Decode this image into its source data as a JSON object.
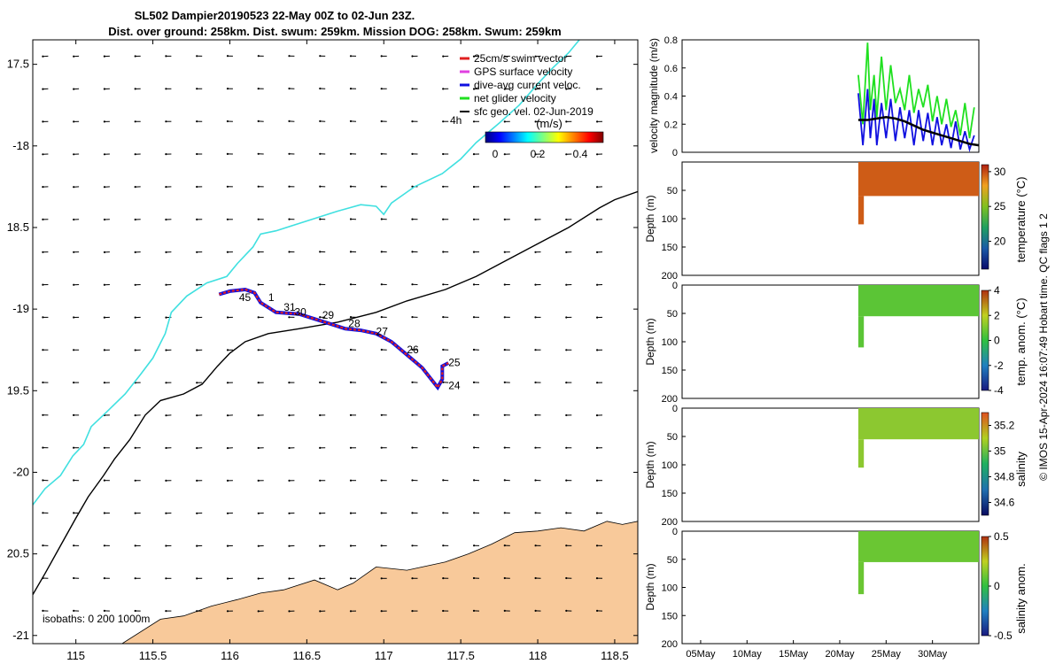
{
  "title": {
    "line1": "SL502 Dampier20190523 22-May 00Z to 02-Jun 23Z.",
    "line2": "Dist. over ground: 258km. Dist. swum: 259km. Mission DOG: 258km. Swum: 259km"
  },
  "side_note": "© IMOS 15-Apr-2024 16:07:49 Hobart time. QC flags 1  2",
  "colors": {
    "land": "#f8c99a",
    "coast_line": "#40e0e0",
    "isobath": "#000000",
    "swim": "#e02020",
    "gps": "#e040e0",
    "dive_avg": "#1010e0",
    "net": "#20e020",
    "sfc_geo": "#000000"
  },
  "chart_data": [
    {
      "id": "map",
      "type": "scatter",
      "xlabel": "",
      "ylabel": "",
      "xlim": [
        114.72,
        118.65
      ],
      "ylim": [
        -21.05,
        -17.35
      ],
      "xticks": [
        115,
        115.5,
        116,
        116.5,
        117,
        117.5,
        118,
        118.5
      ],
      "xticklabels": [
        "115",
        "115.5",
        "116",
        "116.5",
        "117",
        "117.5",
        "118",
        "118.5"
      ],
      "yticks": [
        -17.5,
        -18,
        -18.5,
        -19,
        -19.5,
        -20,
        -20.5,
        -21
      ],
      "yticklabels": [
        "17.5",
        "-18",
        "18.5",
        "-19",
        "19.5",
        "-20",
        "20.5",
        "-21"
      ],
      "legend": [
        {
          "label": "25cm/s swim vector",
          "key": "swim"
        },
        {
          "label": "GPS surface velocity",
          "key": "gps"
        },
        {
          "label": "dive-avg current veloc.",
          "key": "dive_avg"
        },
        {
          "label": "net glider velocity",
          "key": "net"
        },
        {
          "label": "sfc geo. vel. 02-Jun-2019",
          "key": "sfc_geo"
        }
      ],
      "legend_position": "top-right",
      "colorbar": {
        "label": "(m/s)",
        "ticks": [
          "0",
          "0.2",
          "0.4"
        ],
        "range": [
          0,
          0.5
        ],
        "corner_label": "4h"
      },
      "isobath_caption": "isobaths: 0   200  1000m",
      "track": [
        [
          115.93,
          -18.91
        ],
        [
          116.0,
          -18.89
        ],
        [
          116.1,
          -18.88
        ],
        [
          116.16,
          -18.9
        ],
        [
          116.2,
          -18.96
        ],
        [
          116.3,
          -19.02
        ],
        [
          116.45,
          -19.03
        ],
        [
          116.55,
          -19.06
        ],
        [
          116.65,
          -19.09
        ],
        [
          116.75,
          -19.12
        ],
        [
          116.85,
          -19.13
        ],
        [
          116.95,
          -19.15
        ],
        [
          117.05,
          -19.2
        ],
        [
          117.15,
          -19.28
        ],
        [
          117.25,
          -19.36
        ],
        [
          117.3,
          -19.42
        ],
        [
          117.35,
          -19.48
        ],
        [
          117.38,
          -19.43
        ],
        [
          117.38,
          -19.35
        ],
        [
          117.42,
          -19.33
        ]
      ],
      "track_labels": [
        {
          "text": "45",
          "lon": 116.06,
          "lat": -18.95
        },
        {
          "text": "1",
          "lon": 116.25,
          "lat": -18.95
        },
        {
          "text": "31",
          "lon": 116.35,
          "lat": -19.01
        },
        {
          "text": "30",
          "lon": 116.42,
          "lat": -19.04
        },
        {
          "text": "29",
          "lon": 116.6,
          "lat": -19.06
        },
        {
          "text": "28",
          "lon": 116.77,
          "lat": -19.11
        },
        {
          "text": "27",
          "lon": 116.95,
          "lat": -19.16
        },
        {
          "text": "26",
          "lon": 117.15,
          "lat": -19.27
        },
        {
          "text": "25",
          "lon": 117.42,
          "lat": -19.35
        },
        {
          "text": "24",
          "lon": 117.42,
          "lat": -19.49
        }
      ],
      "coastline_cyan": [
        [
          114.72,
          -20.2
        ],
        [
          114.8,
          -20.1
        ],
        [
          114.9,
          -20.02
        ],
        [
          114.98,
          -19.9
        ],
        [
          115.05,
          -19.83
        ],
        [
          115.1,
          -19.72
        ],
        [
          115.2,
          -19.63
        ],
        [
          115.32,
          -19.52
        ],
        [
          115.42,
          -19.4
        ],
        [
          115.5,
          -19.3
        ],
        [
          115.58,
          -19.15
        ],
        [
          115.62,
          -19.02
        ],
        [
          115.72,
          -18.92
        ],
        [
          115.85,
          -18.84
        ],
        [
          115.98,
          -18.8
        ],
        [
          116.05,
          -18.72
        ],
        [
          116.15,
          -18.62
        ],
        [
          116.2,
          -18.54
        ],
        [
          116.3,
          -18.52
        ],
        [
          116.5,
          -18.46
        ],
        [
          116.7,
          -18.4
        ],
        [
          116.85,
          -18.36
        ],
        [
          116.95,
          -18.37
        ],
        [
          117.0,
          -18.42
        ],
        [
          117.05,
          -18.35
        ],
        [
          117.2,
          -18.25
        ],
        [
          117.38,
          -18.17
        ],
        [
          117.5,
          -18.08
        ],
        [
          117.6,
          -17.98
        ],
        [
          117.75,
          -17.86
        ],
        [
          117.88,
          -17.75
        ],
        [
          118.0,
          -17.62
        ],
        [
          118.1,
          -17.52
        ],
        [
          118.2,
          -17.43
        ],
        [
          118.27,
          -17.35
        ]
      ],
      "isobath_line": [
        [
          114.72,
          -20.75
        ],
        [
          114.8,
          -20.62
        ],
        [
          114.9,
          -20.45
        ],
        [
          115.0,
          -20.28
        ],
        [
          115.08,
          -20.15
        ],
        [
          115.18,
          -20.02
        ],
        [
          115.25,
          -19.92
        ],
        [
          115.35,
          -19.8
        ],
        [
          115.45,
          -19.65
        ],
        [
          115.55,
          -19.56
        ],
        [
          115.7,
          -19.52
        ],
        [
          115.82,
          -19.46
        ],
        [
          115.92,
          -19.35
        ],
        [
          116.0,
          -19.27
        ],
        [
          116.1,
          -19.2
        ],
        [
          116.25,
          -19.15
        ],
        [
          116.45,
          -19.12
        ],
        [
          116.7,
          -19.08
        ],
        [
          116.95,
          -19.02
        ],
        [
          117.15,
          -18.95
        ],
        [
          117.4,
          -18.88
        ],
        [
          117.6,
          -18.8
        ],
        [
          117.8,
          -18.7
        ],
        [
          118.0,
          -18.6
        ],
        [
          118.2,
          -18.5
        ],
        [
          118.4,
          -18.38
        ],
        [
          118.5,
          -18.33
        ],
        [
          118.65,
          -18.28
        ]
      ],
      "land_polygon": [
        [
          115.3,
          -21.05
        ],
        [
          115.55,
          -20.9
        ],
        [
          115.7,
          -20.88
        ],
        [
          115.88,
          -20.82
        ],
        [
          116.05,
          -20.78
        ],
        [
          116.2,
          -20.74
        ],
        [
          116.35,
          -20.72
        ],
        [
          116.55,
          -20.66
        ],
        [
          116.7,
          -20.72
        ],
        [
          116.8,
          -20.68
        ],
        [
          116.95,
          -20.58
        ],
        [
          117.15,
          -20.6
        ],
        [
          117.25,
          -20.58
        ],
        [
          117.4,
          -20.55
        ],
        [
          117.55,
          -20.5
        ],
        [
          117.7,
          -20.44
        ],
        [
          117.85,
          -20.37
        ],
        [
          118.0,
          -20.36
        ],
        [
          118.15,
          -20.34
        ],
        [
          118.3,
          -20.36
        ],
        [
          118.45,
          -20.3
        ],
        [
          118.55,
          -20.32
        ],
        [
          118.65,
          -20.3
        ],
        [
          118.65,
          -21.05
        ]
      ]
    },
    {
      "id": "velocity",
      "type": "line",
      "xlim": [
        3,
        35
      ],
      "ylim": [
        0,
        0.8
      ],
      "yticks": [
        0,
        0.2,
        0.4,
        0.6,
        0.8
      ],
      "yticklabels": [
        "0",
        "0.2",
        "0.4",
        "0.6",
        "0.8"
      ],
      "ylabel": "velocity magnitude (m/s)",
      "series": [
        {
          "name": "net glider velocity",
          "color_key": "net",
          "x": [
            22,
            22.5,
            23,
            23.3,
            23.7,
            24,
            24.5,
            25,
            25.5,
            26,
            26.5,
            27,
            27.5,
            28,
            28.5,
            29,
            29.5,
            30,
            30.5,
            31,
            31.5,
            32,
            32.5,
            33,
            33.5,
            34,
            34.5
          ],
          "y": [
            0.55,
            0.2,
            0.78,
            0.3,
            0.55,
            0.25,
            0.68,
            0.3,
            0.62,
            0.35,
            0.45,
            0.3,
            0.55,
            0.28,
            0.45,
            0.32,
            0.48,
            0.22,
            0.4,
            0.2,
            0.38,
            0.18,
            0.3,
            0.12,
            0.35,
            0.1,
            0.32
          ]
        },
        {
          "name": "dive-avg current veloc.",
          "color_key": "dive_avg",
          "x": [
            22,
            22.5,
            23,
            23.3,
            23.7,
            24,
            24.5,
            25,
            25.5,
            26,
            26.5,
            27,
            27.5,
            28,
            28.5,
            29,
            29.5,
            30,
            30.5,
            31,
            31.5,
            32,
            32.5,
            33,
            33.5,
            34,
            34.5
          ],
          "y": [
            0.42,
            0.05,
            0.45,
            0.1,
            0.38,
            0.05,
            0.35,
            0.1,
            0.38,
            0.08,
            0.32,
            0.1,
            0.3,
            0.05,
            0.3,
            0.08,
            0.28,
            0.05,
            0.25,
            0.05,
            0.2,
            0.03,
            0.22,
            0.02,
            0.15,
            0.02,
            0.12
          ]
        },
        {
          "name": "sfc geo. vel.",
          "color_key": "sfc_geo",
          "x": [
            22,
            23,
            24,
            25,
            26,
            27,
            28,
            29,
            30,
            31,
            32,
            33,
            34,
            35
          ],
          "y": [
            0.23,
            0.23,
            0.24,
            0.25,
            0.24,
            0.22,
            0.19,
            0.16,
            0.14,
            0.12,
            0.1,
            0.08,
            0.06,
            0.05
          ]
        }
      ]
    },
    {
      "id": "temperature",
      "type": "heatmap",
      "ylabel": "Depth (m)",
      "clabel": "temperature (°C)",
      "ylim": [
        200,
        0
      ],
      "yticks": [
        0,
        50,
        100,
        150,
        200
      ],
      "yticklabels": [
        "",
        "50",
        "100",
        "150",
        "200"
      ],
      "crange": [
        16,
        31
      ],
      "cticks": [
        20,
        25,
        30
      ],
      "cticklabels": [
        "20",
        "25",
        "30"
      ],
      "data_x": [
        22,
        35
      ],
      "data_depth": [
        0,
        60
      ],
      "deep_column": {
        "x": [
          22,
          22.6
        ],
        "depth": [
          60,
          110
        ]
      },
      "value": 29.6
    },
    {
      "id": "temp_anom",
      "type": "heatmap",
      "ylabel": "Depth (m)",
      "clabel": "temp. anom. (°C)",
      "ylim": [
        200,
        0
      ],
      "yticks": [
        0,
        50,
        100,
        150,
        200
      ],
      "yticklabels": [
        "0",
        "50",
        "100",
        "150",
        "200"
      ],
      "crange": [
        -4,
        4
      ],
      "cticks": [
        -4,
        -2,
        0,
        2,
        4
      ],
      "cticklabels": [
        "-4",
        "-2",
        "0",
        "2",
        "4"
      ],
      "data_x": [
        22,
        35
      ],
      "data_depth": [
        0,
        55
      ],
      "deep_column": {
        "x": [
          22,
          22.6
        ],
        "depth": [
          55,
          110
        ]
      },
      "value": 0.6
    },
    {
      "id": "salinity",
      "type": "heatmap",
      "ylabel": "Depth (m)",
      "clabel": "salinity",
      "ylim": [
        200,
        0
      ],
      "yticks": [
        0,
        50,
        100,
        150,
        200
      ],
      "yticklabels": [
        "0",
        "50",
        "100",
        "150",
        "200"
      ],
      "crange": [
        34.5,
        35.3
      ],
      "cticks": [
        34.6,
        34.8,
        35,
        35.2
      ],
      "cticklabels": [
        "34.6",
        "34.8",
        "35",
        "35.2"
      ],
      "data_x": [
        22,
        35
      ],
      "data_depth": [
        0,
        55
      ],
      "deep_column": {
        "x": [
          22,
          22.6
        ],
        "depth": [
          55,
          105
        ]
      },
      "value": 35.05
    },
    {
      "id": "salinity_anom",
      "type": "heatmap",
      "ylabel": "Depth (m)",
      "clabel": "salinity anom.",
      "ylim": [
        200,
        0
      ],
      "yticks": [
        0,
        50,
        100,
        150,
        200
      ],
      "yticklabels": [
        "0",
        "50",
        "100",
        "150",
        "200"
      ],
      "crange": [
        -0.5,
        0.5
      ],
      "cticks": [
        -0.5,
        0,
        0.5
      ],
      "cticklabels": [
        "-0.5",
        "0",
        "0.5"
      ],
      "data_x": [
        22,
        35
      ],
      "data_depth": [
        0,
        55
      ],
      "deep_column": {
        "x": [
          22,
          22.6
        ],
        "depth": [
          55,
          112
        ]
      },
      "value": 0.1,
      "xticks": [
        5,
        10,
        15,
        20,
        25,
        30
      ],
      "xticklabels": [
        "05May",
        "10May",
        "15May",
        "20May",
        "25May",
        "30May"
      ]
    }
  ]
}
